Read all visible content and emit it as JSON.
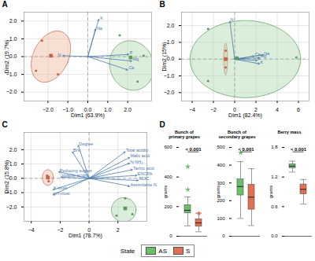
{
  "chart_data": [
    {
      "type": "biplot",
      "title": "A",
      "xlabel": "Dim1 (63.9%)",
      "ylabel": "Dim2 (19.7%)",
      "xlim": [
        -3.2,
        3.2
      ],
      "ylim": [
        -2.5,
        2.5
      ],
      "xticks": [
        -2,
        -1,
        0,
        1,
        2
      ],
      "yticks": [
        -2,
        -1,
        0,
        1,
        2
      ],
      "grid": true,
      "series": [
        {
          "name": "S",
          "color": "#c8604a",
          "points": [
            [
              -2.3,
              0.9
            ],
            [
              -2.6,
              -0.8
            ],
            [
              -1.5,
              -1.0
            ]
          ],
          "center": [
            -1.85,
            0.05
          ],
          "ellipse": {
            "cx": -1.85,
            "cy": 0.0,
            "rx": 0.9,
            "ry": 1.5,
            "angle": -20,
            "color": "#f0b8a0"
          }
        },
        {
          "name": "AS",
          "color": "#5a9a5a",
          "points": [
            [
              1.6,
              1.2
            ],
            [
              2.8,
              0.05
            ],
            [
              2.5,
              -1.4
            ]
          ],
          "center": [
            2.15,
            -0.05
          ],
          "ellipse": {
            "cx": 2.2,
            "cy": -0.5,
            "rx": 1.1,
            "ry": 1.4,
            "angle": 10,
            "color": "#b0d8b0"
          }
        }
      ],
      "arrows": [
        {
          "label": "K",
          "x": 0.55,
          "y": 2.1,
          "lx": 0.62,
          "ly": 2.15,
          "color": "#4a7aaa"
        },
        {
          "label": "Na",
          "x": 0.38,
          "y": 1.55,
          "lx": 0.45,
          "ly": 1.6,
          "color": "#4a7aaa"
        },
        {
          "label": "N",
          "x": -1.25,
          "y": 0.05,
          "lx": -1.5,
          "ly": 0.1,
          "color": "#4a7aaa"
        },
        {
          "label": "P",
          "x": 2.05,
          "y": 0.12,
          "lx": 2.1,
          "ly": 0.22,
          "color": "#4a7aaa"
        },
        {
          "label": "Mg",
          "x": 2.2,
          "y": -0.25,
          "lx": 2.25,
          "ly": -0.15,
          "color": "#4a7aaa"
        },
        {
          "label": "Ca",
          "x": 2.0,
          "y": -0.75,
          "lx": 2.05,
          "ly": -0.65,
          "color": "#4a7aaa"
        }
      ]
    },
    {
      "type": "biplot",
      "title": "B",
      "xlabel": "Dim1 (82.4%)",
      "ylabel": "Dim2 (15%)",
      "xlim": [
        -5,
        7
      ],
      "ylim": [
        -2.5,
        2.8
      ],
      "xticks": [
        -4,
        -2,
        0,
        2,
        4,
        6
      ],
      "yticks": [
        -2,
        -1,
        0,
        1,
        2
      ],
      "grid": true,
      "series": [
        {
          "name": "S",
          "color": "#c8604a",
          "points": [
            [
              -0.85,
              0.5
            ],
            [
              -0.85,
              -0.5
            ],
            [
              -0.85,
              0.05
            ]
          ],
          "center": [
            -0.85,
            0.0
          ],
          "ellipse": {
            "cx": -0.85,
            "cy": 0.0,
            "rx": 0.18,
            "ry": 0.95,
            "angle": 0,
            "color": "#f0b8a0"
          }
        },
        {
          "name": "AS",
          "color": "#5a9a5a",
          "points": [
            [
              -2.5,
              1.8
            ],
            [
              0.2,
              0.05
            ],
            [
              5.8,
              0.1
            ],
            [
              -2.5,
              -1.3
            ]
          ],
          "center": [
            0.2,
            0.05
          ],
          "ellipse": {
            "cx": 1.0,
            "cy": 0.0,
            "rx": 5.2,
            "ry": 2.3,
            "angle": 0,
            "color": "#b0d8b0"
          }
        }
      ],
      "arrows": [
        {
          "label": "N",
          "x": -0.45,
          "y": 2.25,
          "lx": -0.4,
          "ly": 2.35,
          "color": "#4a7aaa"
        },
        {
          "label": "Na",
          "x": 2.7,
          "y": 0.25,
          "lx": 2.75,
          "ly": 0.35,
          "color": "#4a7aaa"
        },
        {
          "label": "Ca",
          "x": 1.85,
          "y": 0.18,
          "lx": 1.9,
          "ly": 0.28,
          "color": "#4a7aaa"
        },
        {
          "label": "Mg",
          "x": 2.35,
          "y": 0.08,
          "lx": 2.4,
          "ly": 0.18,
          "color": "#4a7aaa"
        },
        {
          "label": "P",
          "x": 2.1,
          "y": -0.08,
          "lx": 2.15,
          "ly": 0.02,
          "color": "#4a7aaa"
        },
        {
          "label": "K",
          "x": 2.35,
          "y": -0.28,
          "lx": 2.4,
          "ly": -0.18,
          "color": "#4a7aaa"
        }
      ]
    },
    {
      "type": "biplot",
      "title": "C",
      "xlabel": "Dim1 (78.7%)",
      "ylabel": "Dim2 (15.8%)",
      "xlim": [
        -4.5,
        4.0
      ],
      "ylim": [
        -3.0,
        3.2
      ],
      "xticks": [
        -4,
        -2,
        0,
        2
      ],
      "yticks": [
        -2,
        -1,
        0,
        1,
        2
      ],
      "grid": true,
      "series": [
        {
          "name": "S",
          "color": "#c8604a",
          "points": [
            [
              -2.9,
              0.2
            ],
            [
              -2.8,
              -0.2
            ],
            [
              -2.8,
              0.05
            ]
          ],
          "center": [
            -2.85,
            0.05
          ],
          "ellipse": {
            "cx": -2.85,
            "cy": 0.05,
            "rx": 0.38,
            "ry": 0.55,
            "angle": 0,
            "color": "#f0b8a0"
          }
        },
        {
          "name": "AS",
          "color": "#5a9a5a",
          "points": [
            [
              2.5,
              -1.4
            ],
            [
              3.0,
              -2.5
            ],
            [
              1.9,
              -2.6
            ]
          ],
          "center": [
            2.5,
            -2.1
          ],
          "ellipse": {
            "cx": 2.4,
            "cy": -2.2,
            "rx": 0.85,
            "ry": 0.85,
            "angle": 0,
            "color": "#b0d8b0"
          }
        }
      ],
      "arrows": [
        {
          "label": "Degree",
          "x": -0.75,
          "y": 2.3,
          "lx": -0.7,
          "ly": 2.4,
          "color": "#4a7aaa"
        },
        {
          "label": "Brix",
          "x": -1.15,
          "y": 1.85,
          "lx": -1.1,
          "ly": 1.95,
          "color": "#4a7aaa"
        },
        {
          "label": "Reducing sugars",
          "x": -2.1,
          "y": 0.45,
          "lx": -2.05,
          "ly": 0.55,
          "color": "#4a7aaa"
        },
        {
          "label": "Volatile acidity",
          "x": -1.95,
          "y": 0.08,
          "lx": -1.9,
          "ly": 0.18,
          "color": "#4a7aaa"
        },
        {
          "label": "K must",
          "x": -2.5,
          "y": -0.8,
          "lx": -2.45,
          "ly": -0.7,
          "color": "#4a7aaa"
        },
        {
          "label": "pH must",
          "x": -2.5,
          "y": -1.15,
          "lx": -2.45,
          "ly": -1.05,
          "color": "#4a7aaa"
        },
        {
          "label": "Total acidity",
          "x": 2.5,
          "y": 1.85,
          "lx": 2.55,
          "ly": 1.95,
          "color": "#4a7aaa"
        },
        {
          "label": "Malic acid",
          "x": 2.8,
          "y": 1.45,
          "lx": 2.85,
          "ly": 1.55,
          "color": "#4a7aaa"
        },
        {
          "label": "N-NH₃",
          "x": 2.8,
          "y": 1.05,
          "lx": 2.85,
          "ly": 1.15,
          "color": "#4a7aaa"
        },
        {
          "label": "Tartric acid",
          "x": 3.0,
          "y": 0.6,
          "lx": 3.05,
          "ly": 0.7,
          "color": "#4a7aaa"
        },
        {
          "label": "ENOPA",
          "x": 3.3,
          "y": 0.2,
          "lx": 3.35,
          "ly": 0.3,
          "color": "#4a7aaa"
        },
        {
          "label": "δ13C",
          "x": 3.4,
          "y": -0.15,
          "lx": 3.45,
          "ly": -0.05,
          "color": "#4a7aaa"
        },
        {
          "label": "Assimilable N",
          "x": 2.8,
          "y": -0.55,
          "lx": 2.85,
          "ly": -0.45,
          "color": "#4a7aaa"
        }
      ]
    },
    {
      "type": "box",
      "title": "D",
      "legend_title": "State",
      "series": [
        {
          "name": "AS",
          "color": "#6abf69"
        },
        {
          "name": "S",
          "color": "#e07050"
        }
      ],
      "panels": [
        {
          "title": "Bunch of\nprimary grapes",
          "ylabel": "grams",
          "ylim": [
            0,
            600
          ],
          "yticks": [
            0,
            200,
            400,
            600
          ],
          "annotation": "< 0.001",
          "boxes": [
            {
              "q1": 155,
              "median": 175,
              "q3": 210,
              "whislo": 70,
              "whishi": 265,
              "fliers": [
                470,
                315
              ]
            },
            {
              "q1": 65,
              "median": 90,
              "q3": 115,
              "whislo": 30,
              "whishi": 155,
              "fliers": [
                155
              ]
            }
          ]
        },
        {
          "title": "Bunch of\nsecondary grapes",
          "ylabel": "grams",
          "ylim": [
            0,
            500
          ],
          "yticks": [
            0,
            100,
            200,
            300,
            400,
            500
          ],
          "annotation": "< 0.001",
          "boxes": [
            {
              "q1": 230,
              "median": 280,
              "q3": 320,
              "whislo": 100,
              "whishi": 420,
              "fliers": [
                470,
                310
              ]
            },
            {
              "q1": 150,
              "median": 220,
              "q3": 290,
              "whislo": 60,
              "whishi": 380,
              "fliers": []
            }
          ]
        },
        {
          "title": "Berry mass",
          "ylabel": "grams",
          "ylim": [
            0,
            1.8
          ],
          "yticks": [
            0,
            0.6,
            1.2,
            1.8
          ],
          "annotation": "< 0.001",
          "boxes": [
            {
              "q1": 1.38,
              "median": 1.42,
              "q3": 1.46,
              "whislo": 1.3,
              "whishi": 1.52,
              "fliers": []
            },
            {
              "q1": 0.85,
              "median": 0.95,
              "q3": 1.05,
              "whislo": 0.65,
              "whishi": 1.15,
              "fliers": []
            }
          ]
        }
      ]
    }
  ]
}
